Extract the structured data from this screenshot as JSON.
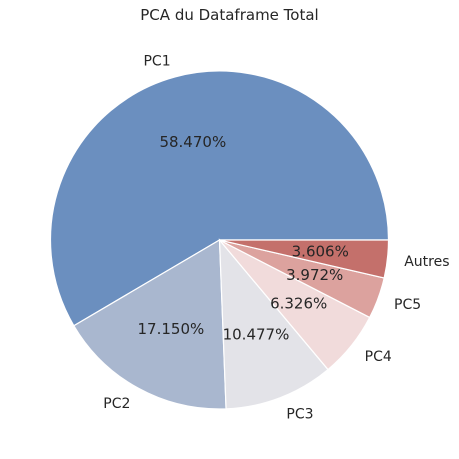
{
  "chart_data": {
    "type": "pie",
    "title": "PCA du Dataframe Total",
    "categories": [
      "PC1",
      "PC2",
      "PC3",
      "PC4",
      "PC5",
      "Autres"
    ],
    "values": [
      58.47,
      17.15,
      10.477,
      6.326,
      3.972,
      3.606
    ],
    "value_labels": [
      "58.470%",
      "17.150%",
      "10.477%",
      "6.326%",
      "3.972%",
      "3.606%"
    ],
    "colors": [
      "#6b8fbf",
      "#a9b7cf",
      "#e3e3e8",
      "#f1dbdb",
      "#dca29e",
      "#c4706b"
    ],
    "start_angle_deg": 0,
    "direction": "counterclockwise",
    "legend": "none"
  }
}
